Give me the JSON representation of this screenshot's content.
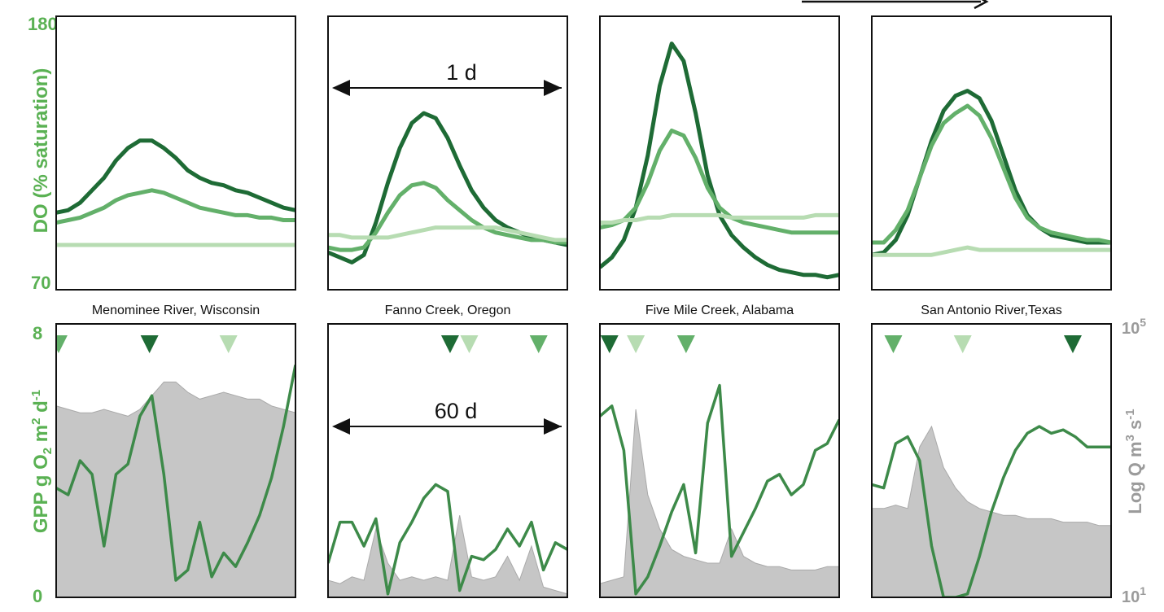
{
  "colors": {
    "dark": "#1e6b35",
    "mid": "#63b06a",
    "light": "#b7dcb2",
    "gpp": "#3d8a49",
    "discharge_fill": "#c6c6c6",
    "discharge_edge": "#a9a9a9",
    "left_axis": "#5ab153",
    "right_axis": "#9b9b9b"
  },
  "icon": "arrow-right-icon",
  "labels": {
    "do_axis": "DO (% saturation)",
    "do_top": "180",
    "do_bottom": "70",
    "gpp_axis": "GPP g O2 m2 d-1",
    "gpp_top": "8",
    "gpp_bottom": "0",
    "q_axis": "Log Q m3 s-1",
    "q_top": "105",
    "q_bottom": "101",
    "span_day": "1 d",
    "span_season": "60 d"
  },
  "chart_data": [
    {
      "type": "line",
      "site": "Menominee River, Wisconsin",
      "panel": "daily DO",
      "ylim": [
        70,
        180
      ],
      "x": [
        0,
        0.05,
        0.1,
        0.15,
        0.2,
        0.25,
        0.3,
        0.35,
        0.4,
        0.45,
        0.5,
        0.55,
        0.6,
        0.65,
        0.7,
        0.75,
        0.8,
        0.85,
        0.9,
        0.95,
        1.0
      ],
      "series": [
        {
          "shade": "dark",
          "values": [
            101,
            102,
            105,
            110,
            115,
            122,
            127,
            130,
            130,
            127,
            123,
            118,
            115,
            113,
            112,
            110,
            109,
            107,
            105,
            103,
            102
          ]
        },
        {
          "shade": "mid",
          "values": [
            97,
            98,
            99,
            101,
            103,
            106,
            108,
            109,
            110,
            109,
            107,
            105,
            103,
            102,
            101,
            100,
            100,
            99,
            99,
            98,
            98
          ]
        },
        {
          "shade": "light",
          "values": [
            88,
            88,
            88,
            88,
            88,
            88,
            88,
            88,
            88,
            88,
            88,
            88,
            88,
            88,
            88,
            88,
            88,
            88,
            88,
            88,
            88
          ]
        }
      ]
    },
    {
      "type": "line",
      "site": "Fanno Creek, Oregon",
      "panel": "daily DO",
      "ylim": [
        70,
        180
      ],
      "x": [
        0,
        0.05,
        0.1,
        0.15,
        0.2,
        0.25,
        0.3,
        0.35,
        0.4,
        0.45,
        0.5,
        0.55,
        0.6,
        0.65,
        0.7,
        0.75,
        0.8,
        0.85,
        0.9,
        0.95,
        1.0
      ],
      "series": [
        {
          "shade": "dark",
          "values": [
            85,
            83,
            81,
            84,
            97,
            113,
            127,
            137,
            141,
            139,
            131,
            120,
            110,
            103,
            98,
            95,
            93,
            91,
            90,
            89,
            88
          ]
        },
        {
          "shade": "mid",
          "values": [
            87,
            86,
            86,
            87,
            93,
            101,
            108,
            112,
            113,
            111,
            106,
            102,
            98,
            95,
            93,
            92,
            91,
            90,
            90,
            89,
            89
          ]
        },
        {
          "shade": "light",
          "values": [
            92,
            92,
            91,
            91,
            91,
            91,
            92,
            93,
            94,
            95,
            95,
            95,
            95,
            95,
            95,
            94,
            93,
            92,
            91,
            90,
            90
          ]
        }
      ]
    },
    {
      "type": "line",
      "site": "Five Mile Creek, Alabama",
      "panel": "daily DO",
      "ylim": [
        70,
        180
      ],
      "x": [
        0,
        0.05,
        0.1,
        0.15,
        0.2,
        0.25,
        0.3,
        0.35,
        0.4,
        0.45,
        0.5,
        0.55,
        0.6,
        0.65,
        0.7,
        0.75,
        0.8,
        0.85,
        0.9,
        0.95,
        1.0
      ],
      "series": [
        {
          "shade": "dark",
          "values": [
            79,
            83,
            90,
            103,
            124,
            152,
            169,
            162,
            141,
            116,
            100,
            92,
            87,
            83,
            80,
            78,
            77,
            76,
            76,
            75,
            76
          ]
        },
        {
          "shade": "mid",
          "values": [
            95,
            96,
            98,
            103,
            113,
            126,
            134,
            132,
            123,
            111,
            103,
            99,
            97,
            96,
            95,
            94,
            93,
            93,
            93,
            93,
            93
          ]
        },
        {
          "shade": "light",
          "values": [
            97,
            97,
            98,
            98,
            99,
            99,
            100,
            100,
            100,
            100,
            100,
            99,
            99,
            99,
            99,
            99,
            99,
            99,
            100,
            100,
            100
          ]
        }
      ]
    },
    {
      "type": "line",
      "site": "San Antonio River,Texas",
      "panel": "daily DO",
      "ylim": [
        70,
        180
      ],
      "x": [
        0,
        0.05,
        0.1,
        0.15,
        0.2,
        0.25,
        0.3,
        0.35,
        0.4,
        0.45,
        0.5,
        0.55,
        0.6,
        0.65,
        0.7,
        0.75,
        0.8,
        0.85,
        0.9,
        0.95,
        1.0
      ],
      "series": [
        {
          "shade": "dark",
          "values": [
            84,
            85,
            90,
            100,
            115,
            130,
            142,
            148,
            150,
            147,
            138,
            124,
            110,
            100,
            95,
            92,
            91,
            90,
            89,
            89,
            89
          ]
        },
        {
          "shade": "mid",
          "values": [
            89,
            89,
            94,
            102,
            115,
            128,
            137,
            141,
            144,
            140,
            131,
            119,
            107,
            99,
            95,
            93,
            92,
            91,
            90,
            90,
            89
          ]
        },
        {
          "shade": "light",
          "values": [
            84,
            84,
            84,
            84,
            84,
            84,
            85,
            86,
            87,
            86,
            86,
            86,
            86,
            86,
            86,
            86,
            86,
            86,
            86,
            86,
            86
          ]
        }
      ]
    },
    {
      "type": "area",
      "site": "Menominee River, Wisconsin",
      "panel": "seasonal GPP and discharge",
      "ylim": [
        0,
        8
      ],
      "x": [
        0,
        0.05,
        0.1,
        0.15,
        0.2,
        0.25,
        0.3,
        0.35,
        0.4,
        0.45,
        0.5,
        0.55,
        0.6,
        0.65,
        0.7,
        0.75,
        0.8,
        0.85,
        0.9,
        0.95,
        1.0
      ],
      "markers": [
        {
          "shade": "mid",
          "x": 0.01
        },
        {
          "shade": "dark",
          "x": 0.39
        },
        {
          "shade": "light",
          "x": 0.72
        }
      ],
      "series": [
        {
          "name": "GPP",
          "values": [
            3.2,
            3.0,
            4.0,
            3.6,
            1.5,
            3.6,
            3.9,
            5.3,
            5.9,
            3.6,
            0.5,
            0.8,
            2.2,
            0.6,
            1.3,
            0.9,
            1.6,
            2.4,
            3.5,
            5.0,
            6.8
          ]
        },
        {
          "name": "Log Q",
          "values": [
            5.6,
            5.5,
            5.4,
            5.4,
            5.5,
            5.4,
            5.3,
            5.5,
            5.9,
            6.3,
            6.3,
            6.0,
            5.8,
            5.9,
            6.0,
            5.9,
            5.8,
            5.8,
            5.6,
            5.5,
            5.4
          ]
        }
      ]
    },
    {
      "type": "area",
      "site": "Fanno Creek, Oregon",
      "panel": "seasonal GPP and discharge",
      "ylim": [
        0,
        8
      ],
      "x": [
        0,
        0.05,
        0.1,
        0.15,
        0.2,
        0.25,
        0.3,
        0.35,
        0.4,
        0.45,
        0.5,
        0.55,
        0.6,
        0.65,
        0.7,
        0.75,
        0.8,
        0.85,
        0.9,
        0.95,
        1.0
      ],
      "markers": [
        {
          "shade": "dark",
          "x": 0.51
        },
        {
          "shade": "light",
          "x": 0.59
        },
        {
          "shade": "mid",
          "x": 0.88
        }
      ],
      "series": [
        {
          "name": "GPP",
          "values": [
            1.0,
            2.2,
            2.2,
            1.5,
            2.3,
            0.1,
            1.6,
            2.2,
            2.9,
            3.3,
            3.1,
            0.2,
            1.2,
            1.1,
            1.4,
            2.0,
            1.5,
            2.2,
            0.8,
            1.6,
            1.4
          ]
        },
        {
          "name": "Log Q",
          "values": [
            0.5,
            0.4,
            0.6,
            0.5,
            2.0,
            1.0,
            0.5,
            0.6,
            0.5,
            0.6,
            0.5,
            2.4,
            0.6,
            0.5,
            0.6,
            1.2,
            0.5,
            1.5,
            0.3,
            0.2,
            0.1
          ]
        }
      ]
    },
    {
      "type": "area",
      "site": "Five Mile Creek, Alabama",
      "panel": "seasonal GPP and discharge",
      "ylim": [
        0,
        8
      ],
      "x": [
        0,
        0.05,
        0.1,
        0.15,
        0.2,
        0.25,
        0.3,
        0.35,
        0.4,
        0.45,
        0.5,
        0.55,
        0.6,
        0.65,
        0.7,
        0.75,
        0.8,
        0.85,
        0.9,
        0.95,
        1.0
      ],
      "markers": [
        {
          "shade": "dark",
          "x": 0.04
        },
        {
          "shade": "light",
          "x": 0.15
        },
        {
          "shade": "mid",
          "x": 0.36
        }
      ],
      "series": [
        {
          "name": "GPP",
          "values": [
            5.3,
            5.6,
            4.3,
            0.1,
            0.6,
            1.5,
            2.5,
            3.3,
            1.3,
            5.1,
            6.2,
            1.2,
            1.9,
            2.6,
            3.4,
            3.6,
            3.0,
            3.3,
            4.3,
            4.5,
            5.2
          ]
        },
        {
          "name": "Log Q",
          "values": [
            0.4,
            0.5,
            0.6,
            5.5,
            3.0,
            2.0,
            1.4,
            1.2,
            1.1,
            1.0,
            1.0,
            2.0,
            1.2,
            1.0,
            0.9,
            0.9,
            0.8,
            0.8,
            0.8,
            0.9,
            0.9
          ]
        }
      ]
    },
    {
      "type": "area",
      "site": "San Antonio River,Texas",
      "panel": "seasonal GPP and discharge",
      "ylim": [
        0,
        8
      ],
      "x": [
        0,
        0.05,
        0.1,
        0.15,
        0.2,
        0.25,
        0.3,
        0.35,
        0.4,
        0.45,
        0.5,
        0.55,
        0.6,
        0.65,
        0.7,
        0.75,
        0.8,
        0.85,
        0.9,
        0.95,
        1.0
      ],
      "markers": [
        {
          "shade": "mid",
          "x": 0.09
        },
        {
          "shade": "light",
          "x": 0.38
        },
        {
          "shade": "dark",
          "x": 0.84
        }
      ],
      "series": [
        {
          "name": "GPP",
          "values": [
            3.3,
            3.2,
            4.5,
            4.7,
            4.0,
            1.5,
            0.0,
            0.0,
            0.1,
            1.2,
            2.5,
            3.5,
            4.3,
            4.8,
            5.0,
            4.8,
            4.9,
            4.7,
            4.4,
            4.4,
            4.4
          ]
        },
        {
          "name": "Log Q",
          "values": [
            2.6,
            2.6,
            2.7,
            2.6,
            4.4,
            5.0,
            3.8,
            3.2,
            2.8,
            2.6,
            2.5,
            2.4,
            2.4,
            2.3,
            2.3,
            2.3,
            2.2,
            2.2,
            2.2,
            2.1,
            2.1
          ]
        }
      ]
    }
  ]
}
